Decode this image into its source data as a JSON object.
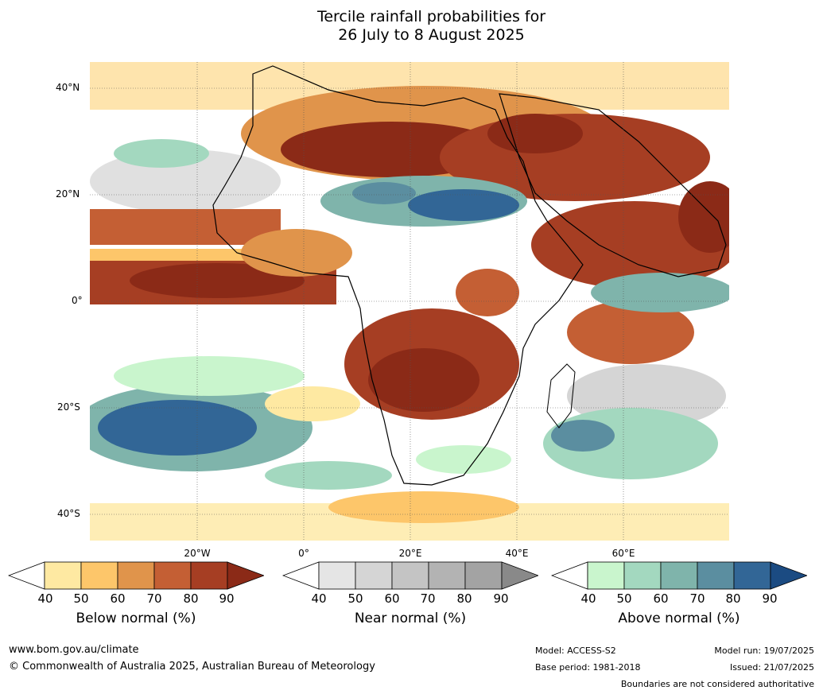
{
  "title": {
    "line1": "Tercile rainfall probabilities for",
    "line2": "26 July to 8 August 2025"
  },
  "map": {
    "lat_labels": [
      "40°N",
      "20°N",
      "0°",
      "20°S",
      "40°S"
    ],
    "lon_labels": [
      "20°W",
      "0°",
      "20°E",
      "40°E",
      "60°E"
    ]
  },
  "legend": {
    "ticks": [
      "40",
      "50",
      "60",
      "70",
      "80",
      "90"
    ],
    "below": {
      "label": "Below normal (%)",
      "colors": [
        "#ffffff",
        "#fee9a2",
        "#fdc66a",
        "#e0944b",
        "#c45f34",
        "#a63e23",
        "#8b2a17"
      ]
    },
    "near": {
      "label": "Near normal (%)",
      "colors": [
        "#ffffff",
        "#e5e5e5",
        "#d5d5d5",
        "#c4c4c4",
        "#b3b3b3",
        "#a3a3a3",
        "#898989"
      ]
    },
    "above": {
      "label": "Above normal (%)",
      "colors": [
        "#ffffff",
        "#c9f5cd",
        "#a3d8bf",
        "#7fb4ab",
        "#5b8ea0",
        "#326696",
        "#1b4b82"
      ]
    }
  },
  "footer": {
    "url": "www.bom.gov.au/climate",
    "copyright": "© Commonwealth of Australia 2025, Australian Bureau of Meteorology",
    "model": "Model: ACCESS-S2",
    "base_period": "Base period: 1981-2018",
    "model_run": "Model run: 19/07/2025",
    "issued": "Issued: 21/07/2025",
    "boundaries": "Boundaries are not considered authoritative"
  }
}
